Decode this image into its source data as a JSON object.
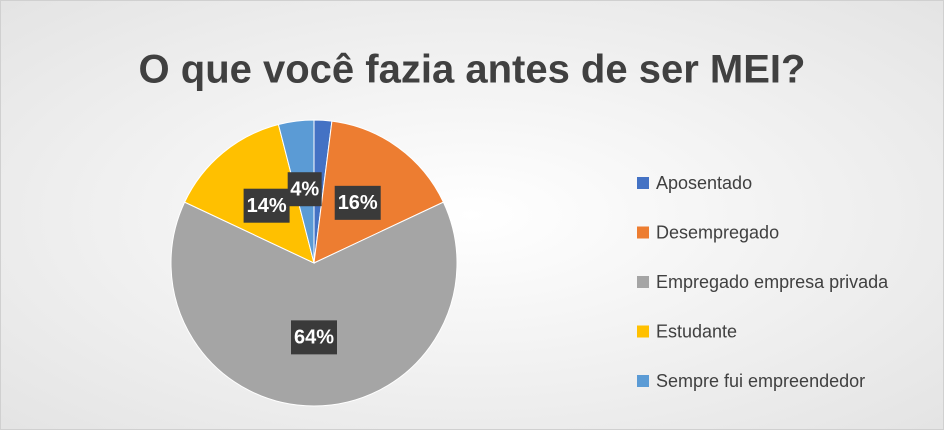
{
  "chart_data": {
    "type": "pie",
    "title": "O que você fazia antes de ser MEI?",
    "categories": [
      "Aposentado",
      "Desempregado",
      "Empregado empresa privada",
      "Estudante",
      "Sempre fui empreendedor"
    ],
    "values": [
      2,
      16,
      64,
      14,
      4
    ],
    "value_labels": [
      null,
      "16%",
      "64%",
      "14%",
      "4%"
    ],
    "colors": [
      "#4472c4",
      "#ed7d31",
      "#a5a5a5",
      "#ffc000",
      "#5b9bd5"
    ],
    "legend": "right"
  }
}
